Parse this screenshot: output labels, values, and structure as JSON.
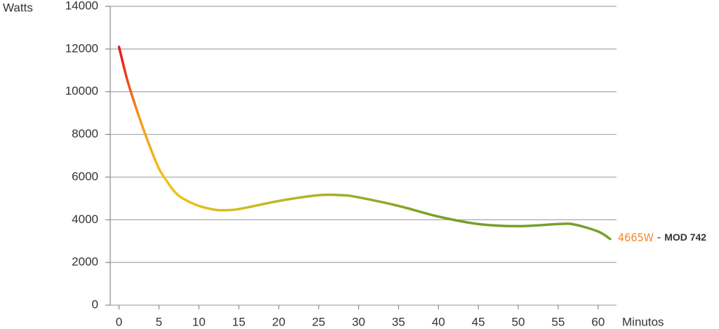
{
  "chart_data": {
    "type": "line",
    "y_label": "Watts",
    "x_label": "Minutos",
    "x": [
      0,
      1,
      2,
      3,
      4,
      5,
      6,
      7,
      8,
      10,
      12,
      13,
      15,
      20,
      25,
      28,
      30,
      35,
      40,
      45,
      50,
      55,
      57,
      60,
      61.5
    ],
    "series": [
      {
        "name": "MOD 742",
        "colors": [
          "#e8141c",
          "#f49a1e",
          "#f2c21b",
          "#b5b626",
          "#74a02a"
        ],
        "values": [
          12100,
          10600,
          9400,
          8300,
          7300,
          6400,
          5800,
          5300,
          5000,
          4650,
          4470,
          4450,
          4500,
          4880,
          5150,
          5150,
          5050,
          4650,
          4150,
          3800,
          3700,
          3800,
          3780,
          3450,
          3100
        ]
      }
    ],
    "annotation": {
      "value_text": "4665W",
      "separator": "-",
      "model": "MOD 742",
      "value_color": "#f08a2c"
    },
    "xlim": [
      -1.1,
      62.3
    ],
    "ylim": [
      0,
      14000
    ],
    "xticks": [
      0,
      5,
      10,
      15,
      20,
      25,
      30,
      35,
      40,
      45,
      50,
      55,
      60
    ],
    "yticks": [
      0,
      2000,
      4000,
      6000,
      8000,
      10000,
      12000,
      14000
    ],
    "grid": true
  }
}
